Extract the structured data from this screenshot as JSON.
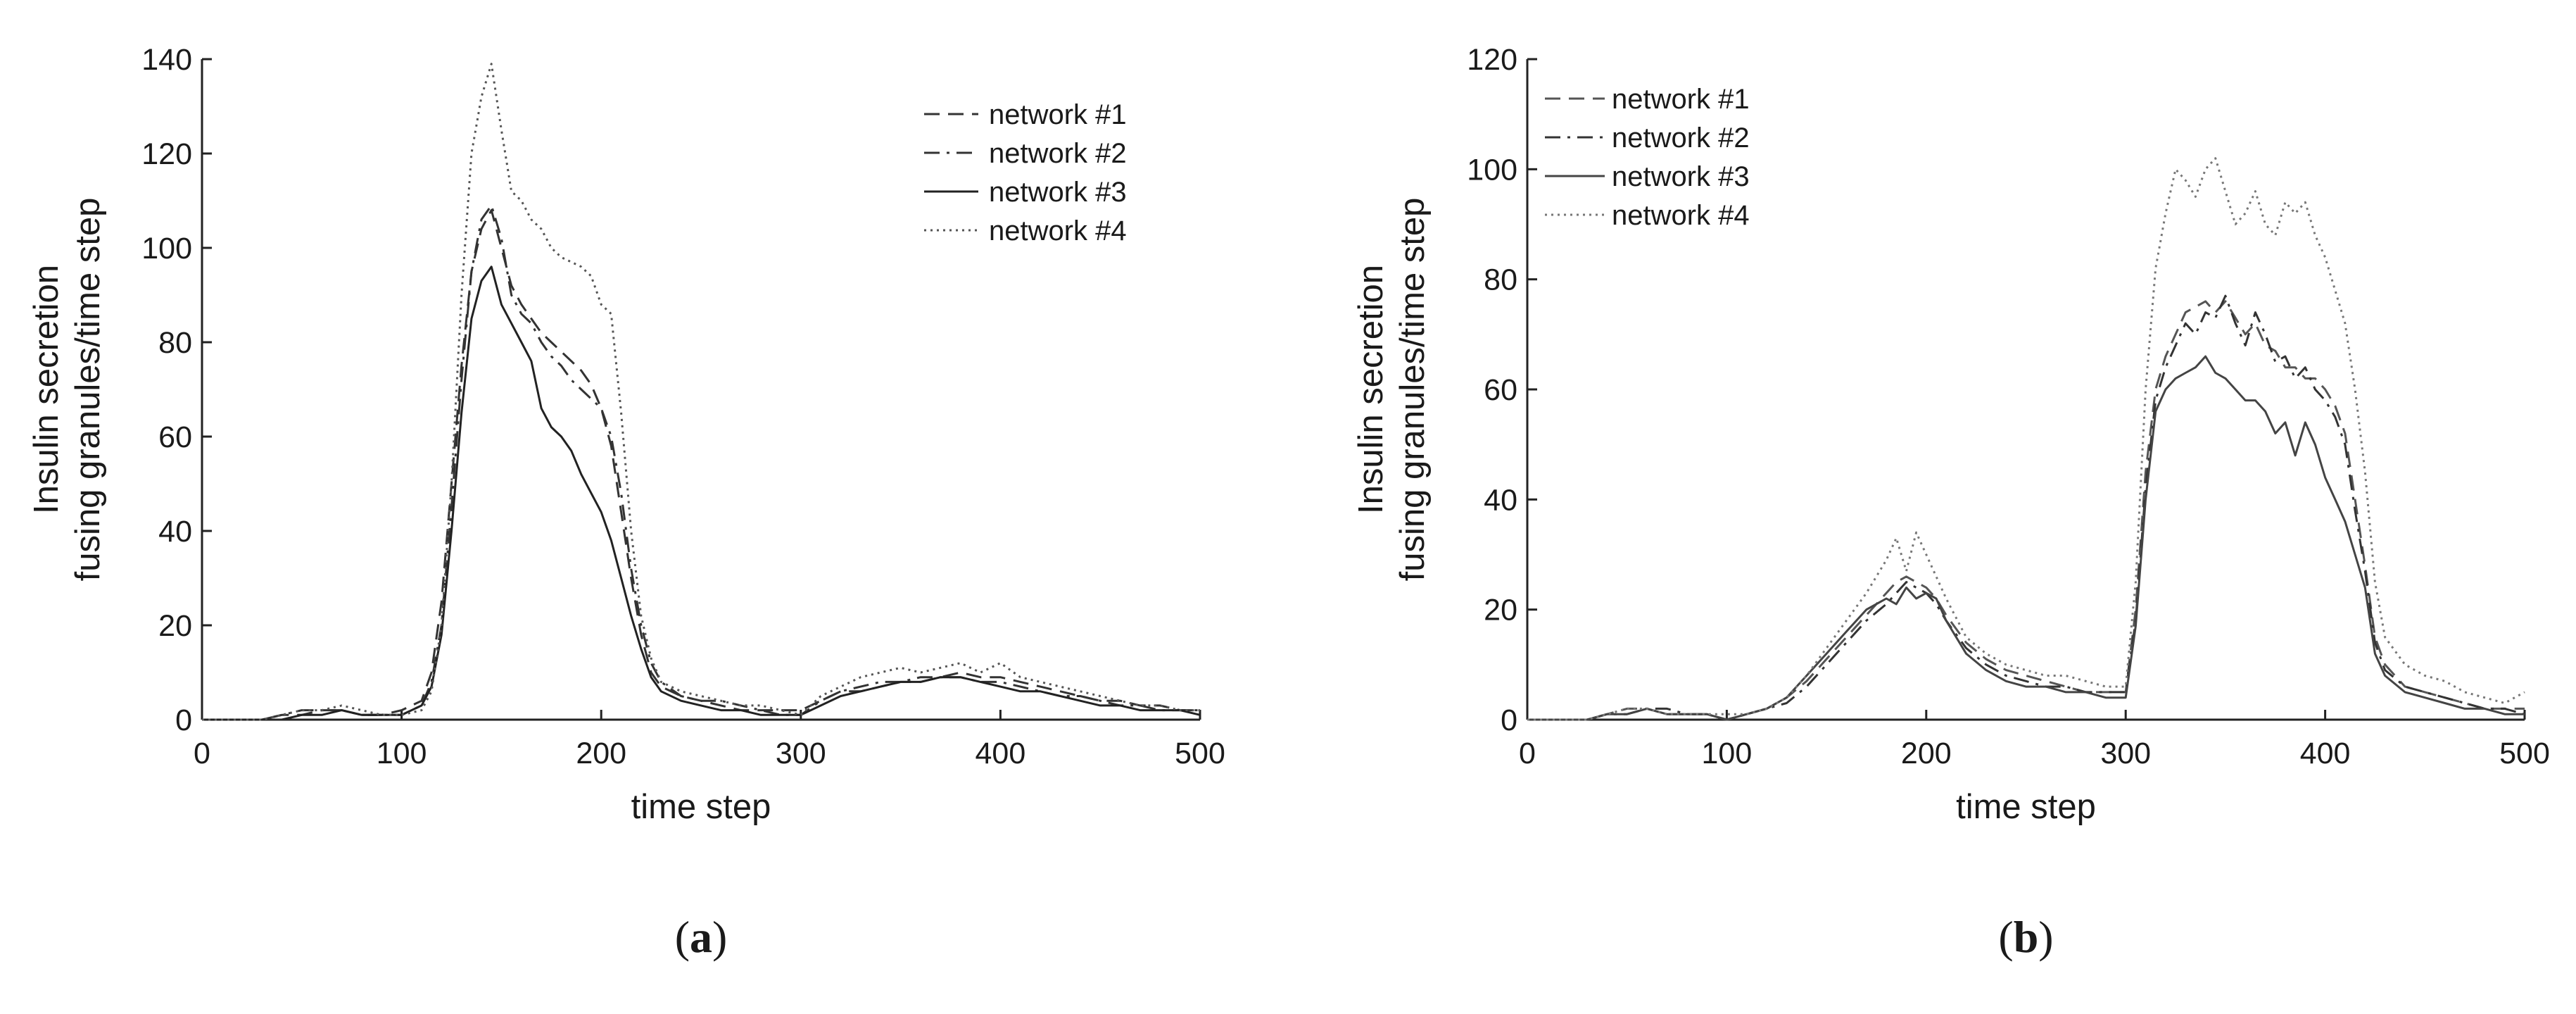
{
  "chart_data": [
    {
      "type": "line",
      "caption_letter": "a",
      "xlabel": "time step",
      "ylabel": [
        "Insulin secretion",
        "fusing granules/time step"
      ],
      "xlim": [
        0,
        500
      ],
      "ylim": [
        0,
        140
      ],
      "xticks": [
        0,
        100,
        200,
        300,
        400,
        500
      ],
      "yticks": [
        0,
        20,
        40,
        60,
        80,
        100,
        120,
        140
      ],
      "grid": false,
      "legend_position": "top-right",
      "series": [
        {
          "name": "network #1",
          "style": "dashed",
          "color": "#333333",
          "x": [
            0,
            30,
            40,
            50,
            60,
            70,
            80,
            90,
            100,
            110,
            115,
            120,
            125,
            130,
            135,
            140,
            145,
            150,
            155,
            160,
            165,
            170,
            175,
            180,
            185,
            190,
            195,
            200,
            205,
            210,
            215,
            220,
            225,
            230,
            240,
            250,
            260,
            270,
            280,
            290,
            300,
            310,
            320,
            330,
            340,
            350,
            360,
            370,
            380,
            390,
            400,
            410,
            420,
            430,
            440,
            450,
            460,
            470,
            480,
            490,
            500
          ],
          "y": [
            0,
            0,
            1,
            1,
            2,
            2,
            1,
            1,
            2,
            4,
            10,
            25,
            50,
            75,
            95,
            104,
            108,
            100,
            92,
            88,
            85,
            82,
            80,
            78,
            76,
            74,
            71,
            66,
            58,
            44,
            30,
            18,
            10,
            7,
            5,
            4,
            3,
            2,
            2,
            2,
            2,
            4,
            6,
            6,
            7,
            8,
            8,
            9,
            10,
            9,
            9,
            8,
            7,
            6,
            5,
            4,
            4,
            3,
            3,
            2,
            2
          ]
        },
        {
          "name": "network #2",
          "style": "dashdot",
          "color": "#333333",
          "x": [
            0,
            30,
            40,
            50,
            60,
            70,
            80,
            90,
            100,
            110,
            115,
            120,
            125,
            130,
            135,
            140,
            145,
            150,
            155,
            160,
            165,
            170,
            175,
            180,
            185,
            190,
            195,
            200,
            205,
            210,
            215,
            220,
            225,
            230,
            240,
            250,
            260,
            270,
            280,
            290,
            300,
            310,
            320,
            330,
            340,
            350,
            360,
            370,
            380,
            390,
            400,
            410,
            420,
            430,
            440,
            450,
            460,
            470,
            480,
            490,
            500
          ],
          "y": [
            0,
            0,
            1,
            2,
            2,
            2,
            1,
            1,
            1,
            3,
            8,
            20,
            45,
            72,
            95,
            106,
            109,
            102,
            90,
            86,
            84,
            80,
            77,
            75,
            72,
            70,
            68,
            66,
            60,
            48,
            32,
            20,
            12,
            8,
            5,
            4,
            4,
            3,
            2,
            1,
            1,
            4,
            6,
            7,
            8,
            8,
            9,
            9,
            9,
            8,
            8,
            7,
            6,
            5,
            5,
            4,
            3,
            3,
            2,
            2,
            2
          ]
        },
        {
          "name": "network #3",
          "style": "solid",
          "color": "#222222",
          "x": [
            0,
            30,
            40,
            50,
            60,
            70,
            80,
            90,
            100,
            110,
            115,
            120,
            125,
            130,
            135,
            140,
            145,
            150,
            155,
            160,
            165,
            170,
            175,
            180,
            185,
            190,
            195,
            200,
            205,
            210,
            215,
            220,
            225,
            230,
            240,
            250,
            260,
            270,
            280,
            290,
            300,
            310,
            320,
            330,
            340,
            350,
            360,
            370,
            380,
            390,
            400,
            410,
            420,
            430,
            440,
            450,
            460,
            470,
            480,
            490,
            500
          ],
          "y": [
            0,
            0,
            0,
            1,
            1,
            2,
            1,
            1,
            1,
            3,
            7,
            18,
            40,
            65,
            85,
            93,
            96,
            88,
            84,
            80,
            76,
            66,
            62,
            60,
            57,
            52,
            48,
            44,
            38,
            30,
            22,
            15,
            9,
            6,
            4,
            3,
            2,
            2,
            1,
            1,
            1,
            3,
            5,
            6,
            7,
            8,
            8,
            9,
            9,
            8,
            7,
            6,
            6,
            5,
            4,
            3,
            3,
            2,
            2,
            2,
            1
          ]
        },
        {
          "name": "network #4",
          "style": "dotted",
          "color": "#555555",
          "x": [
            0,
            30,
            40,
            50,
            60,
            70,
            80,
            90,
            100,
            110,
            115,
            120,
            125,
            130,
            135,
            140,
            145,
            150,
            155,
            160,
            165,
            170,
            175,
            180,
            185,
            190,
            195,
            200,
            205,
            210,
            215,
            220,
            225,
            230,
            240,
            250,
            260,
            270,
            280,
            290,
            300,
            310,
            320,
            330,
            340,
            350,
            360,
            370,
            380,
            390,
            400,
            410,
            420,
            430,
            440,
            450,
            460,
            470,
            480,
            490,
            500
          ],
          "y": [
            0,
            0,
            1,
            2,
            2,
            3,
            2,
            1,
            1,
            2,
            6,
            20,
            50,
            90,
            120,
            132,
            139,
            125,
            112,
            110,
            106,
            104,
            100,
            98,
            97,
            96,
            94,
            88,
            86,
            65,
            40,
            22,
            13,
            8,
            6,
            5,
            4,
            3,
            3,
            2,
            1,
            5,
            7,
            9,
            10,
            11,
            10,
            11,
            12,
            10,
            12,
            9,
            8,
            7,
            6,
            5,
            4,
            3,
            3,
            2,
            2
          ]
        }
      ]
    },
    {
      "type": "line",
      "caption_letter": "b",
      "xlabel": "time step",
      "ylabel": [
        "Insulin secretion",
        "fusing granules/time step"
      ],
      "xlim": [
        0,
        500
      ],
      "ylim": [
        0,
        120
      ],
      "xticks": [
        0,
        100,
        200,
        300,
        400,
        500
      ],
      "yticks": [
        0,
        20,
        40,
        60,
        80,
        100,
        120
      ],
      "grid": false,
      "legend_position": "top-left",
      "series": [
        {
          "name": "network #1",
          "style": "dashed",
          "color": "#555555",
          "x": [
            0,
            30,
            40,
            50,
            60,
            70,
            80,
            90,
            100,
            110,
            120,
            130,
            140,
            150,
            160,
            170,
            180,
            185,
            190,
            195,
            200,
            205,
            210,
            220,
            230,
            240,
            250,
            260,
            270,
            280,
            290,
            300,
            305,
            310,
            315,
            320,
            325,
            330,
            335,
            340,
            345,
            350,
            355,
            360,
            365,
            370,
            375,
            380,
            385,
            390,
            395,
            400,
            405,
            410,
            415,
            420,
            425,
            430,
            440,
            450,
            460,
            470,
            480,
            490,
            500
          ],
          "y": [
            0,
            0,
            1,
            2,
            2,
            1,
            1,
            1,
            0,
            1,
            2,
            4,
            7,
            11,
            15,
            19,
            23,
            25,
            26,
            25,
            24,
            22,
            19,
            14,
            11,
            9,
            8,
            7,
            6,
            5,
            5,
            5,
            20,
            45,
            60,
            66,
            70,
            74,
            75,
            76,
            74,
            76,
            73,
            70,
            72,
            68,
            67,
            64,
            64,
            62,
            62,
            60,
            57,
            52,
            40,
            28,
            15,
            10,
            6,
            5,
            4,
            3,
            2,
            2,
            2
          ]
        },
        {
          "name": "network #2",
          "style": "dashdot",
          "color": "#333333",
          "x": [
            0,
            30,
            40,
            50,
            60,
            70,
            80,
            90,
            100,
            110,
            120,
            130,
            140,
            150,
            160,
            170,
            180,
            185,
            190,
            195,
            200,
            205,
            210,
            220,
            230,
            240,
            250,
            260,
            270,
            280,
            290,
            300,
            305,
            310,
            315,
            320,
            325,
            330,
            335,
            340,
            345,
            350,
            355,
            360,
            365,
            370,
            375,
            380,
            385,
            390,
            395,
            400,
            405,
            410,
            415,
            420,
            425,
            430,
            440,
            450,
            460,
            470,
            480,
            490,
            500
          ],
          "y": [
            0,
            0,
            1,
            1,
            2,
            2,
            1,
            1,
            0,
            1,
            2,
            3,
            6,
            10,
            14,
            18,
            21,
            23,
            25,
            24,
            23,
            21,
            18,
            13,
            10,
            8,
            7,
            6,
            6,
            5,
            5,
            5,
            18,
            42,
            58,
            64,
            68,
            72,
            70,
            74,
            73,
            77,
            72,
            68,
            74,
            70,
            65,
            66,
            62,
            64,
            60,
            58,
            55,
            50,
            38,
            27,
            14,
            9,
            6,
            5,
            4,
            3,
            2,
            2,
            1
          ]
        },
        {
          "name": "network #3",
          "style": "solid",
          "color": "#444444",
          "x": [
            0,
            30,
            40,
            50,
            60,
            70,
            80,
            90,
            100,
            110,
            120,
            130,
            140,
            150,
            160,
            170,
            180,
            185,
            190,
            195,
            200,
            205,
            210,
            220,
            230,
            240,
            250,
            260,
            270,
            280,
            290,
            300,
            305,
            310,
            315,
            320,
            325,
            330,
            335,
            340,
            345,
            350,
            355,
            360,
            365,
            370,
            375,
            380,
            385,
            390,
            395,
            400,
            405,
            410,
            415,
            420,
            425,
            430,
            440,
            450,
            460,
            470,
            480,
            490,
            500
          ],
          "y": [
            0,
            0,
            1,
            1,
            2,
            1,
            1,
            1,
            0,
            1,
            2,
            4,
            8,
            12,
            16,
            20,
            22,
            21,
            24,
            22,
            23,
            22,
            18,
            12,
            9,
            7,
            6,
            6,
            5,
            5,
            4,
            4,
            17,
            40,
            56,
            60,
            62,
            63,
            64,
            66,
            63,
            62,
            60,
            58,
            58,
            56,
            52,
            54,
            48,
            54,
            50,
            44,
            40,
            36,
            30,
            24,
            12,
            8,
            5,
            4,
            3,
            2,
            2,
            1,
            1
          ]
        },
        {
          "name": "network #4",
          "style": "dotted",
          "color": "#777777",
          "x": [
            0,
            30,
            40,
            50,
            60,
            70,
            80,
            90,
            100,
            110,
            120,
            130,
            140,
            150,
            160,
            170,
            180,
            185,
            190,
            195,
            200,
            205,
            210,
            220,
            230,
            240,
            250,
            260,
            270,
            280,
            290,
            300,
            305,
            310,
            315,
            320,
            325,
            330,
            335,
            340,
            345,
            350,
            355,
            360,
            365,
            370,
            375,
            380,
            385,
            390,
            395,
            400,
            405,
            410,
            415,
            420,
            425,
            430,
            440,
            450,
            460,
            470,
            480,
            490,
            500
          ],
          "y": [
            0,
            0,
            1,
            2,
            2,
            1,
            1,
            1,
            1,
            1,
            2,
            4,
            8,
            13,
            18,
            23,
            29,
            33,
            27,
            34,
            30,
            26,
            22,
            15,
            12,
            10,
            9,
            8,
            8,
            7,
            6,
            6,
            25,
            60,
            82,
            92,
            100,
            98,
            95,
            100,
            102,
            96,
            90,
            92,
            96,
            90,
            88,
            94,
            92,
            94,
            88,
            84,
            78,
            72,
            60,
            45,
            25,
            15,
            10,
            8,
            7,
            5,
            4,
            3,
            5
          ]
        }
      ]
    }
  ]
}
